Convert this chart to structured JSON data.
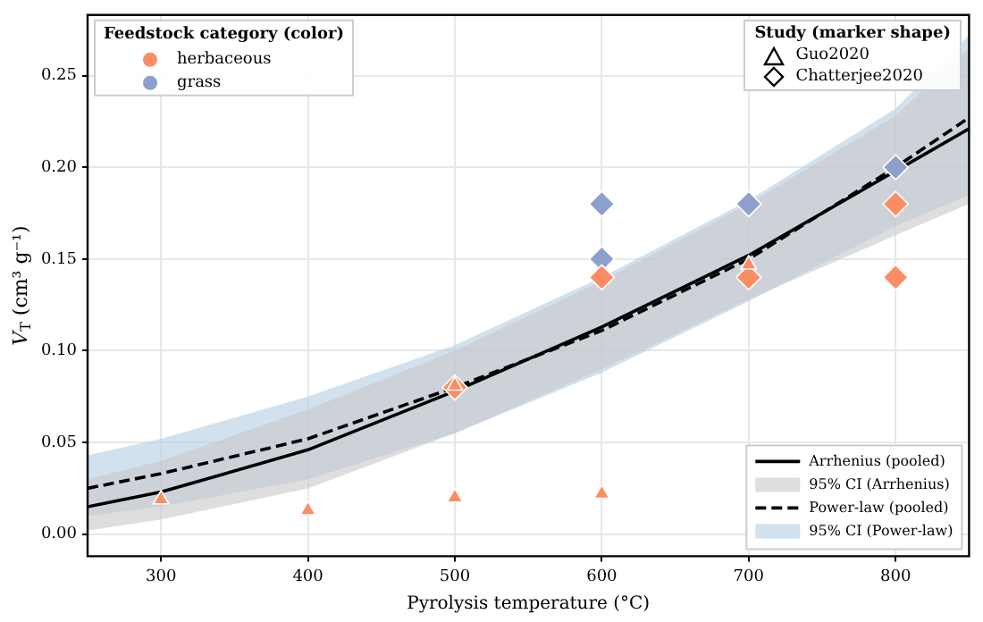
{
  "chart_data": {
    "type": "scatter",
    "xlabel": "Pyrolysis temperature (°C)",
    "ylabel": "V$_{T}$ (cm³ g⁻¹)",
    "xlim": [
      250,
      850
    ],
    "xticks": [
      300,
      400,
      500,
      600,
      700,
      800
    ],
    "ylim": [
      -0.012,
      0.283
    ],
    "yticks": [
      {
        "value": 0,
        "label": "0.00"
      },
      {
        "value": 0.05,
        "label": "0.05"
      },
      {
        "value": 0.1,
        "label": "0.10"
      },
      {
        "value": 0.15,
        "label": "0.15"
      },
      {
        "value": 0.2,
        "label": "0.20"
      },
      {
        "value": 0.25,
        "label": "0.25"
      }
    ],
    "grid": true,
    "legend": [
      "top left",
      "top right",
      "bottom right"
    ],
    "legend_title": [
      "Feedstock category (color)",
      "Study (marker shape)"
    ],
    "annotations": [
      "Guo2020",
      "Chatterjee2020"
    ],
    "series": [
      {
        "type": "line",
        "name": "Arrhenius (pooled)",
        "color": "#000000",
        "line_style": "solid",
        "x": [
          250,
          300,
          400,
          500,
          600,
          700,
          800,
          850
        ],
        "values": [
          0.015,
          0.023,
          0.046,
          0.078,
          0.113,
          0.152,
          0.198,
          0.221
        ]
      },
      {
        "type": "line",
        "name": "95% CI (Arrhenius)",
        "color": "#c8c8c8",
        "x": [
          250,
          300,
          400,
          500,
          600,
          700,
          800,
          850
        ],
        "values": [
          null,
          null,
          null,
          null,
          null,
          null,
          null,
          null
        ],
        "lower": [
          0.002,
          0.008,
          0.025,
          0.055,
          0.09,
          0.128,
          0.163,
          0.18
        ],
        "upper": [
          0.03,
          0.04,
          0.068,
          0.1,
          0.138,
          0.18,
          0.228,
          0.265
        ]
      },
      {
        "type": "line",
        "name": "Power-law (pooled)",
        "color": "#000000",
        "line_style": "dashed",
        "x": [
          250,
          300,
          400,
          500,
          600,
          700,
          800,
          850
        ],
        "values": [
          0.025,
          0.033,
          0.052,
          0.08,
          0.111,
          0.15,
          0.2,
          0.227
        ]
      },
      {
        "type": "line",
        "name": "95% CI (Power-law)",
        "color": "#b3cde3",
        "x": [
          250,
          300,
          400,
          500,
          600,
          700,
          800,
          850
        ],
        "values": [
          null,
          null,
          null,
          null,
          null,
          null,
          null,
          null
        ],
        "lower": [
          0.01,
          0.015,
          0.03,
          0.055,
          0.088,
          0.127,
          0.168,
          0.185
        ],
        "upper": [
          0.043,
          0.052,
          0.075,
          0.103,
          0.14,
          0.182,
          0.232,
          0.272
        ]
      },
      {
        "name": "herbaceous",
        "color": "#fc8d62",
        "marker": "triangle",
        "x": [
          300,
          400,
          500,
          600,
          500,
          700
        ],
        "values": [
          0.019,
          0.013,
          0.02,
          0.022,
          0.081,
          0.147
        ]
      },
      {
        "color": "#fc8d62",
        "marker": "diamond",
        "x": [
          500,
          600,
          700,
          800,
          800
        ],
        "values": [
          0.08,
          0.14,
          0.14,
          0.18,
          0.14
        ]
      },
      {
        "name": "grass",
        "color": "#8da0cb",
        "marker": "diamond",
        "x": [
          600,
          600,
          700,
          800
        ],
        "values": [
          0.18,
          0.15,
          0.18,
          0.2
        ]
      }
    ]
  }
}
